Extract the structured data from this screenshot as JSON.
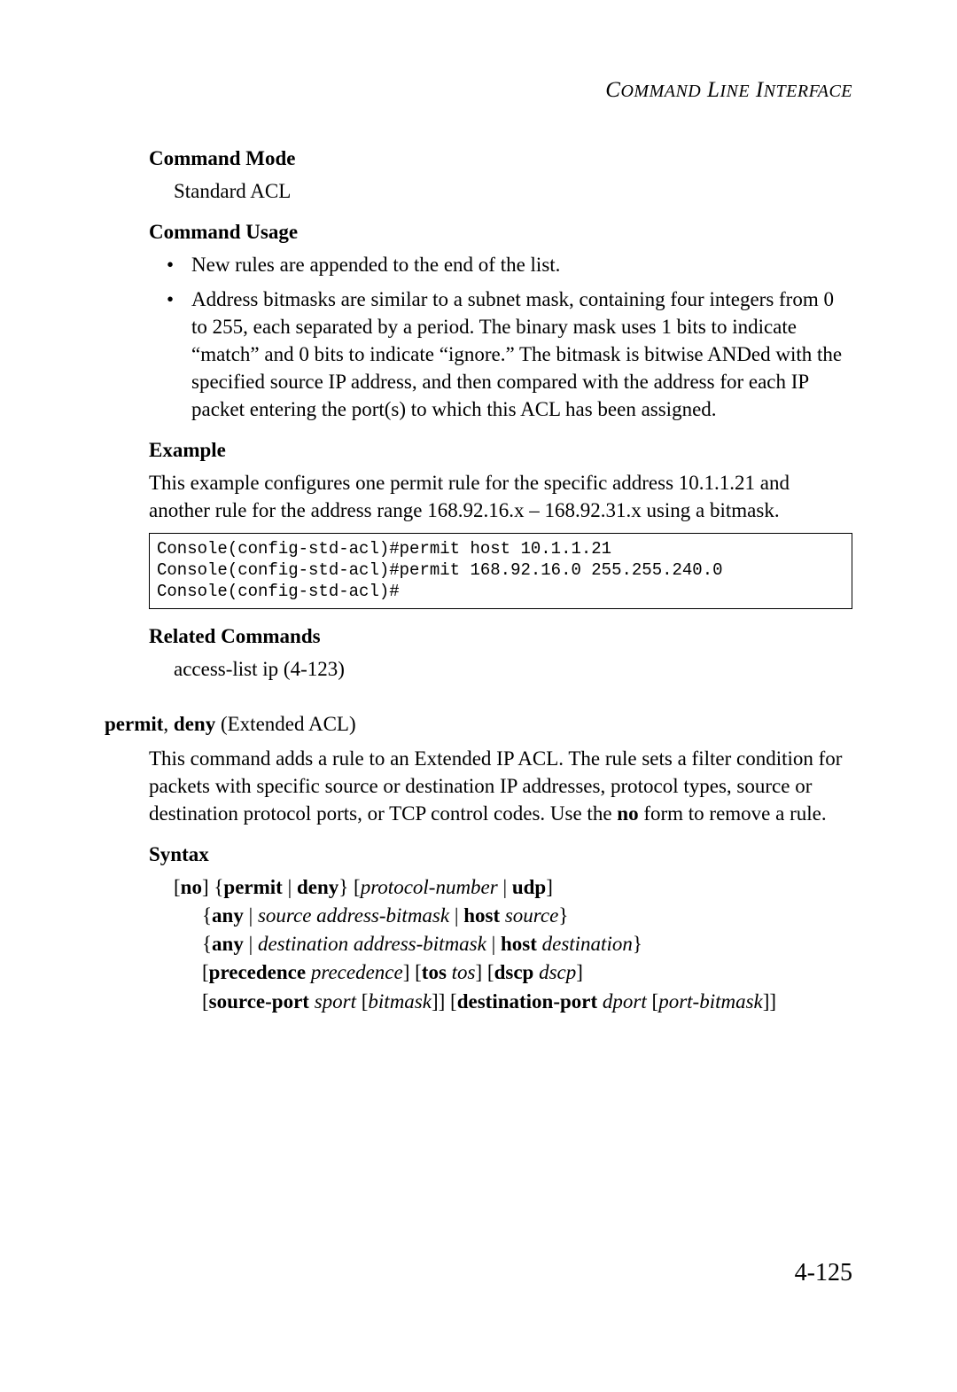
{
  "header": {
    "text_parts": [
      "C",
      "OMMAND",
      " L",
      "INE",
      " I",
      "NTERFACE"
    ]
  },
  "sections": {
    "command_mode": {
      "heading": "Command Mode",
      "value": "Standard ACL"
    },
    "command_usage": {
      "heading": "Command Usage",
      "bullets": [
        "New rules are appended to the end of the list.",
        "Address bitmasks are similar to a subnet mask, containing four integers from 0 to 255, each separated by a period. The binary mask uses 1 bits to indicate “match” and 0 bits to indicate “ignore.” The bitmask is bitwise ANDed with the specified source IP address, and then compared with the address for each IP packet entering the port(s) to which this ACL has been assigned."
      ]
    },
    "example": {
      "heading": "Example",
      "intro": "This example configures one permit rule for the specific address 10.1.1.21 and another rule for the address range 168.92.16.x – 168.92.31.x using a bitmask.",
      "console": "Console(config-std-acl)#permit host 10.1.1.21\nConsole(config-std-acl)#permit 168.92.16.0 255.255.240.0\nConsole(config-std-acl)#"
    },
    "related": {
      "heading": "Related Commands",
      "item": "access-list ip (4-123)"
    }
  },
  "command": {
    "title_bold_1": "permit",
    "title_sep": ", ",
    "title_bold_2": "deny",
    "title_tail": " (Extended ACL)",
    "description_pre": "This command adds a rule to an Extended IP ACL. The rule sets a filter condition for packets with specific source or destination IP addresses, protocol types, source or destination protocol ports, or TCP control codes. Use the ",
    "description_bold": "no",
    "description_post": " form to remove a rule.",
    "syntax_heading": "Syntax",
    "syntax": {
      "l1": {
        "a": "[",
        "b": "no",
        "c": "] {",
        "d": "permit",
        "e": " | ",
        "f": "deny",
        "g": "} [",
        "h": "protocol-number",
        "i": " | ",
        "j": "udp",
        "k": "]"
      },
      "l2": {
        "a": "{",
        "b": "any",
        "c": " |  ",
        "d": "source address-bitmask",
        "e": "  | ",
        "f": "host",
        "g": " ",
        "h": "source",
        "i": "}"
      },
      "l3": {
        "a": "{",
        "b": "any",
        "c": " |  ",
        "d": "destination address-bitmask",
        "e": "  | ",
        "f": "host",
        "g": " ",
        "h": "destination",
        "i": "}"
      },
      "l4": {
        "a": "[",
        "b": "precedence",
        "c": " ",
        "d": "precedence",
        "e": "] [",
        "f": "tos",
        "g": " ",
        "h": "tos",
        "i": "] [",
        "j": "dscp",
        "k": " ",
        "l": "dscp",
        "m": "]"
      },
      "l5": {
        "a": "[",
        "b": "source-port",
        "c": " ",
        "d": "sport",
        "e": " [",
        "f": "bitmask",
        "g": "]] [",
        "h": "destination-port",
        "i": " ",
        "j": "dport",
        "k": " [",
        "l": "port-bitmask",
        "m": "]]"
      }
    }
  },
  "page_number": "4-125",
  "colors": {
    "text": "#000000",
    "background": "#ffffff",
    "border": "#000000"
  },
  "typography": {
    "body_fontsize": 23,
    "mono_fontsize": 19,
    "header_fontsize": 25,
    "pagenum_fontsize": 28
  }
}
